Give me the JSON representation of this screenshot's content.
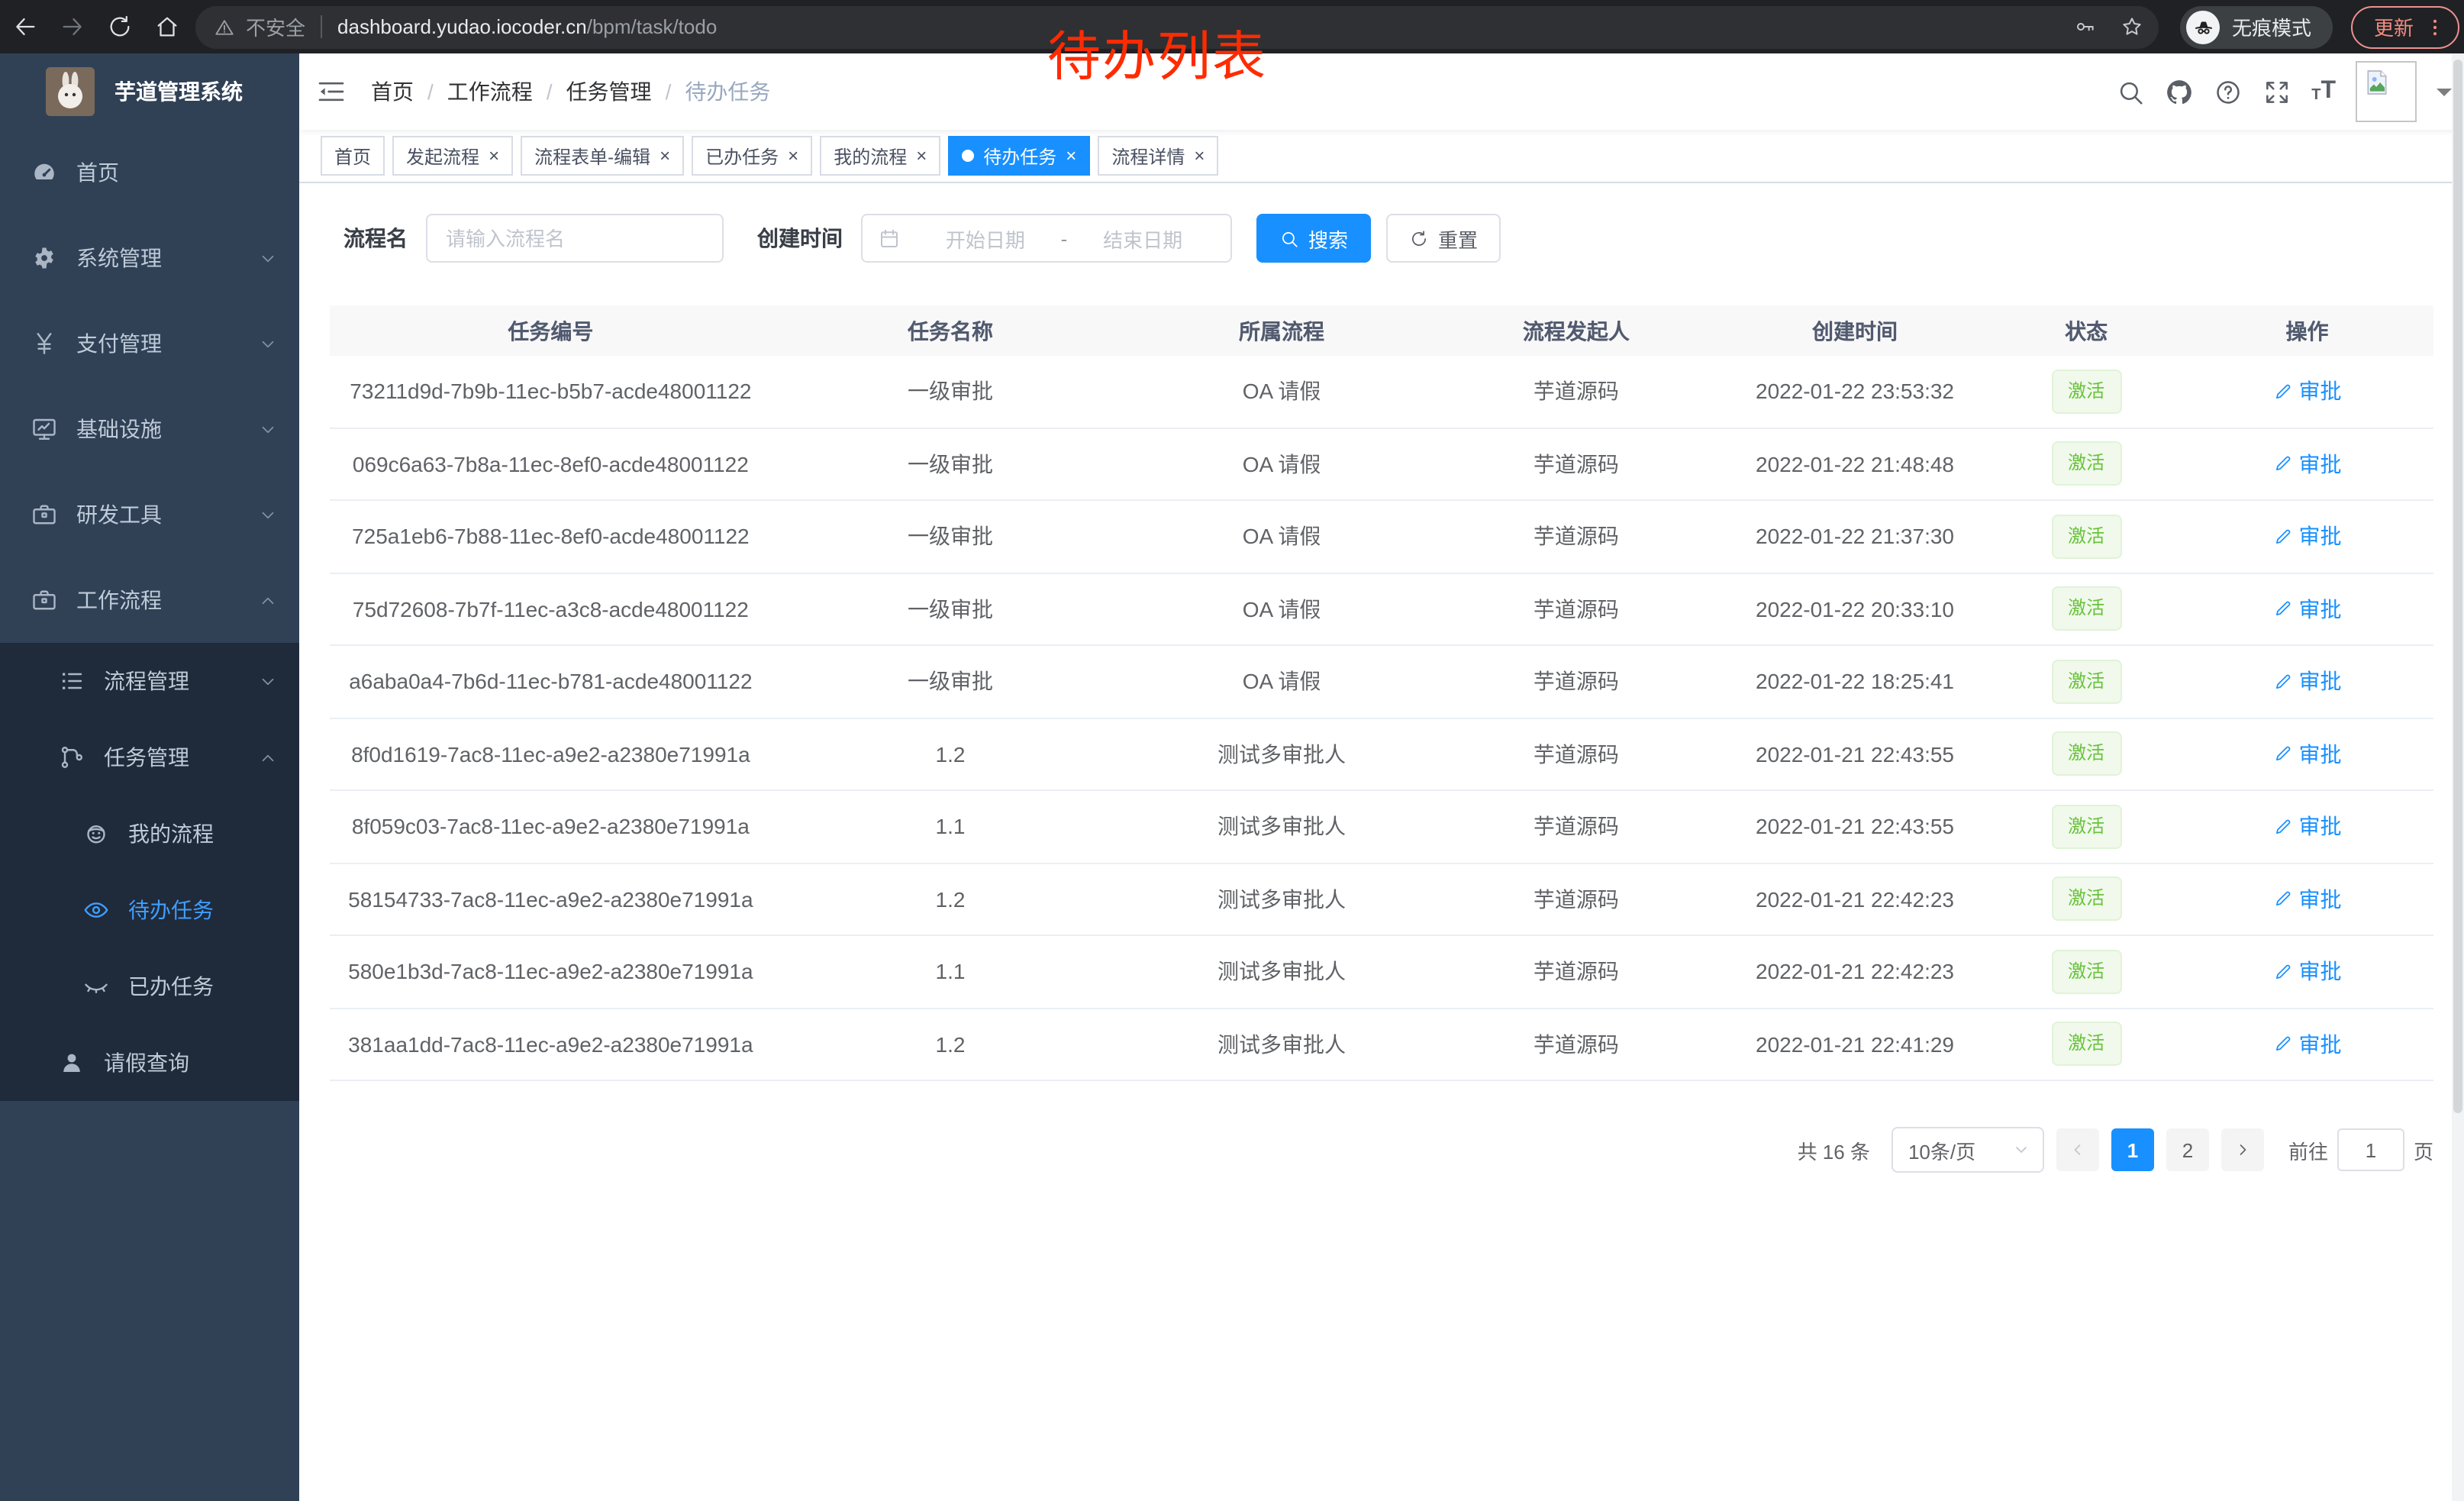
{
  "browser": {
    "security_label": "不安全",
    "url_host": "dashboard.yudao.iocoder.cn",
    "url_path": "/bpm/task/todo",
    "incognito_label": "无痕模式",
    "update_label": "更新"
  },
  "annotation": {
    "text": "待办列表",
    "color": "#ff2b00"
  },
  "sidebar": {
    "title": "芋道管理系统",
    "items": [
      {
        "label": "首页",
        "icon": "dashboard",
        "level": 1,
        "chevron": null
      },
      {
        "label": "系统管理",
        "icon": "gear",
        "level": 1,
        "chevron": "down"
      },
      {
        "label": "支付管理",
        "icon": "yen",
        "level": 1,
        "chevron": "down"
      },
      {
        "label": "基础设施",
        "icon": "monitor",
        "level": 1,
        "chevron": "down"
      },
      {
        "label": "研发工具",
        "icon": "toolbox",
        "level": 1,
        "chevron": "down"
      },
      {
        "label": "工作流程",
        "icon": "briefcase",
        "level": 1,
        "chevron": "up"
      },
      {
        "label": "流程管理",
        "icon": "list-tree",
        "level": 2,
        "chevron": "down",
        "sub": true
      },
      {
        "label": "任务管理",
        "icon": "flow-tree",
        "level": 2,
        "chevron": "up",
        "sub": true
      },
      {
        "label": "我的流程",
        "icon": "robot",
        "level": 3,
        "sub": true
      },
      {
        "label": "待办任务",
        "icon": "eye",
        "level": 3,
        "sub": true,
        "active": true
      },
      {
        "label": "已办任务",
        "icon": "eye-closed",
        "level": 3,
        "sub": true
      },
      {
        "label": "请假查询",
        "icon": "user",
        "level": 2,
        "sub": true
      }
    ]
  },
  "header": {
    "breadcrumb": [
      {
        "label": "首页"
      },
      {
        "label": "工作流程"
      },
      {
        "label": "任务管理"
      },
      {
        "label": "待办任务"
      }
    ]
  },
  "tabs": {
    "items": [
      {
        "label": "首页",
        "closable": false
      },
      {
        "label": "发起流程",
        "closable": true
      },
      {
        "label": "流程表单-编辑",
        "closable": true
      },
      {
        "label": "已办任务",
        "closable": true
      },
      {
        "label": "我的流程",
        "closable": true
      },
      {
        "label": "待办任务",
        "closable": true,
        "active": true
      },
      {
        "label": "流程详情",
        "closable": true
      }
    ]
  },
  "filter": {
    "name_label": "流程名",
    "name_placeholder": "请输入流程名",
    "time_label": "创建时间",
    "start_placeholder": "开始日期",
    "range_separator": "-",
    "end_placeholder": "结束日期",
    "search_label": "搜索",
    "reset_label": "重置"
  },
  "table": {
    "columns": [
      {
        "label": "任务编号"
      },
      {
        "label": "任务名称"
      },
      {
        "label": "所属流程"
      },
      {
        "label": "流程发起人"
      },
      {
        "label": "创建时间"
      },
      {
        "label": "状态"
      },
      {
        "label": "操作"
      }
    ],
    "rows": [
      {
        "id": "73211d9d-7b9b-11ec-b5b7-acde48001122",
        "name": "一级审批",
        "process": "OA 请假",
        "starter": "芋道源码",
        "time": "2022-01-22 23:53:32",
        "status": "激活",
        "action": "审批"
      },
      {
        "id": "069c6a63-7b8a-11ec-8ef0-acde48001122",
        "name": "一级审批",
        "process": "OA 请假",
        "starter": "芋道源码",
        "time": "2022-01-22 21:48:48",
        "status": "激活",
        "action": "审批"
      },
      {
        "id": "725a1eb6-7b88-11ec-8ef0-acde48001122",
        "name": "一级审批",
        "process": "OA 请假",
        "starter": "芋道源码",
        "time": "2022-01-22 21:37:30",
        "status": "激活",
        "action": "审批"
      },
      {
        "id": "75d72608-7b7f-11ec-a3c8-acde48001122",
        "name": "一级审批",
        "process": "OA 请假",
        "starter": "芋道源码",
        "time": "2022-01-22 20:33:10",
        "status": "激活",
        "action": "审批"
      },
      {
        "id": "a6aba0a4-7b6d-11ec-b781-acde48001122",
        "name": "一级审批",
        "process": "OA 请假",
        "starter": "芋道源码",
        "time": "2022-01-22 18:25:41",
        "status": "激活",
        "action": "审批"
      },
      {
        "id": "8f0d1619-7ac8-11ec-a9e2-a2380e71991a",
        "name": "1.2",
        "process": "测试多审批人",
        "starter": "芋道源码",
        "time": "2022-01-21 22:43:55",
        "status": "激活",
        "action": "审批"
      },
      {
        "id": "8f059c03-7ac8-11ec-a9e2-a2380e71991a",
        "name": "1.1",
        "process": "测试多审批人",
        "starter": "芋道源码",
        "time": "2022-01-21 22:43:55",
        "status": "激活",
        "action": "审批"
      },
      {
        "id": "58154733-7ac8-11ec-a9e2-a2380e71991a",
        "name": "1.2",
        "process": "测试多审批人",
        "starter": "芋道源码",
        "time": "2022-01-21 22:42:23",
        "status": "激活",
        "action": "审批"
      },
      {
        "id": "580e1b3d-7ac8-11ec-a9e2-a2380e71991a",
        "name": "1.1",
        "process": "测试多审批人",
        "starter": "芋道源码",
        "time": "2022-01-21 22:42:23",
        "status": "激活",
        "action": "审批"
      },
      {
        "id": "381aa1dd-7ac8-11ec-a9e2-a2380e71991a",
        "name": "1.2",
        "process": "测试多审批人",
        "starter": "芋道源码",
        "time": "2022-01-21 22:41:29",
        "status": "激活",
        "action": "审批"
      }
    ]
  },
  "pagination": {
    "total_label": "共 16 条",
    "page_size_value": "10条/页",
    "pages": [
      {
        "label": "1",
        "active": true
      },
      {
        "label": "2"
      }
    ],
    "goto_label": "前往",
    "goto_value": "1",
    "goto_unit": "页"
  },
  "colors": {
    "accent": "#1890ff",
    "sidebar_bg": "#304156",
    "submenu_bg": "#1f2a3a",
    "sidebar_active": "#409eff",
    "success_text": "#67c23a",
    "success_bg": "#f0f9eb",
    "annotation_red": "#ff2b00"
  }
}
